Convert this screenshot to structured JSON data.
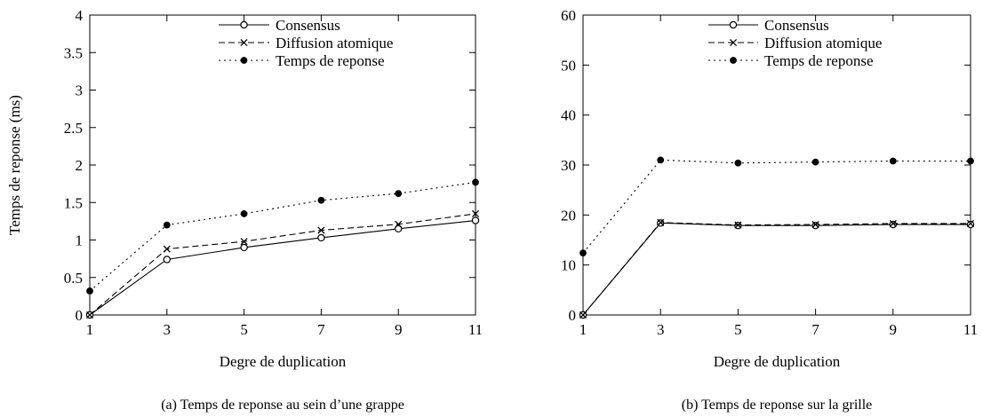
{
  "chart_data": [
    {
      "type": "line",
      "caption": "(a) Temps de reponse au sein d’une grappe",
      "xlabel": "Degre de duplication",
      "ylabel": "Temps de reponse (ms)",
      "x": [
        1,
        3,
        5,
        7,
        9,
        11
      ],
      "xlim": [
        1,
        11
      ],
      "ylim": [
        0,
        4
      ],
      "xticks": [
        "1",
        "3",
        "5",
        "7",
        "9",
        "11"
      ],
      "yticks": [
        "0",
        "0.5",
        "1",
        "1.5",
        "2",
        "2.5",
        "3",
        "3.5",
        "4"
      ],
      "legend_position": "top-center",
      "series": [
        {
          "name": "Consensus",
          "marker": "circle",
          "dash": "solid",
          "values": [
            0,
            0.74,
            0.9,
            1.03,
            1.15,
            1.26
          ]
        },
        {
          "name": "Diffusion atomique",
          "marker": "x",
          "dash": "dashed",
          "values": [
            0,
            0.88,
            0.98,
            1.13,
            1.21,
            1.35
          ]
        },
        {
          "name": "Temps de reponse",
          "marker": "dot",
          "dash": "dotted",
          "values": [
            0.32,
            1.2,
            1.35,
            1.53,
            1.62,
            1.77
          ]
        }
      ]
    },
    {
      "type": "line",
      "caption": "(b) Temps de reponse sur la grille",
      "xlabel": "Degre de duplication",
      "ylabel": "",
      "x": [
        1,
        3,
        5,
        7,
        9,
        11
      ],
      "xlim": [
        1,
        11
      ],
      "ylim": [
        0,
        60
      ],
      "xticks": [
        "1",
        "3",
        "5",
        "7",
        "9",
        "11"
      ],
      "yticks": [
        "0",
        "10",
        "20",
        "30",
        "40",
        "50",
        "60"
      ],
      "legend_position": "top-center",
      "series": [
        {
          "name": "Consensus",
          "marker": "circle",
          "dash": "solid",
          "values": [
            0,
            18.4,
            17.9,
            17.9,
            18.1,
            18.1
          ]
        },
        {
          "name": "Diffusion atomique",
          "marker": "x",
          "dash": "dashed",
          "values": [
            0,
            18.5,
            18.0,
            18.1,
            18.3,
            18.3
          ]
        },
        {
          "name": "Temps de reponse",
          "marker": "dot",
          "dash": "dotted",
          "values": [
            12.4,
            31.0,
            30.4,
            30.6,
            30.8,
            30.8
          ]
        }
      ]
    }
  ]
}
